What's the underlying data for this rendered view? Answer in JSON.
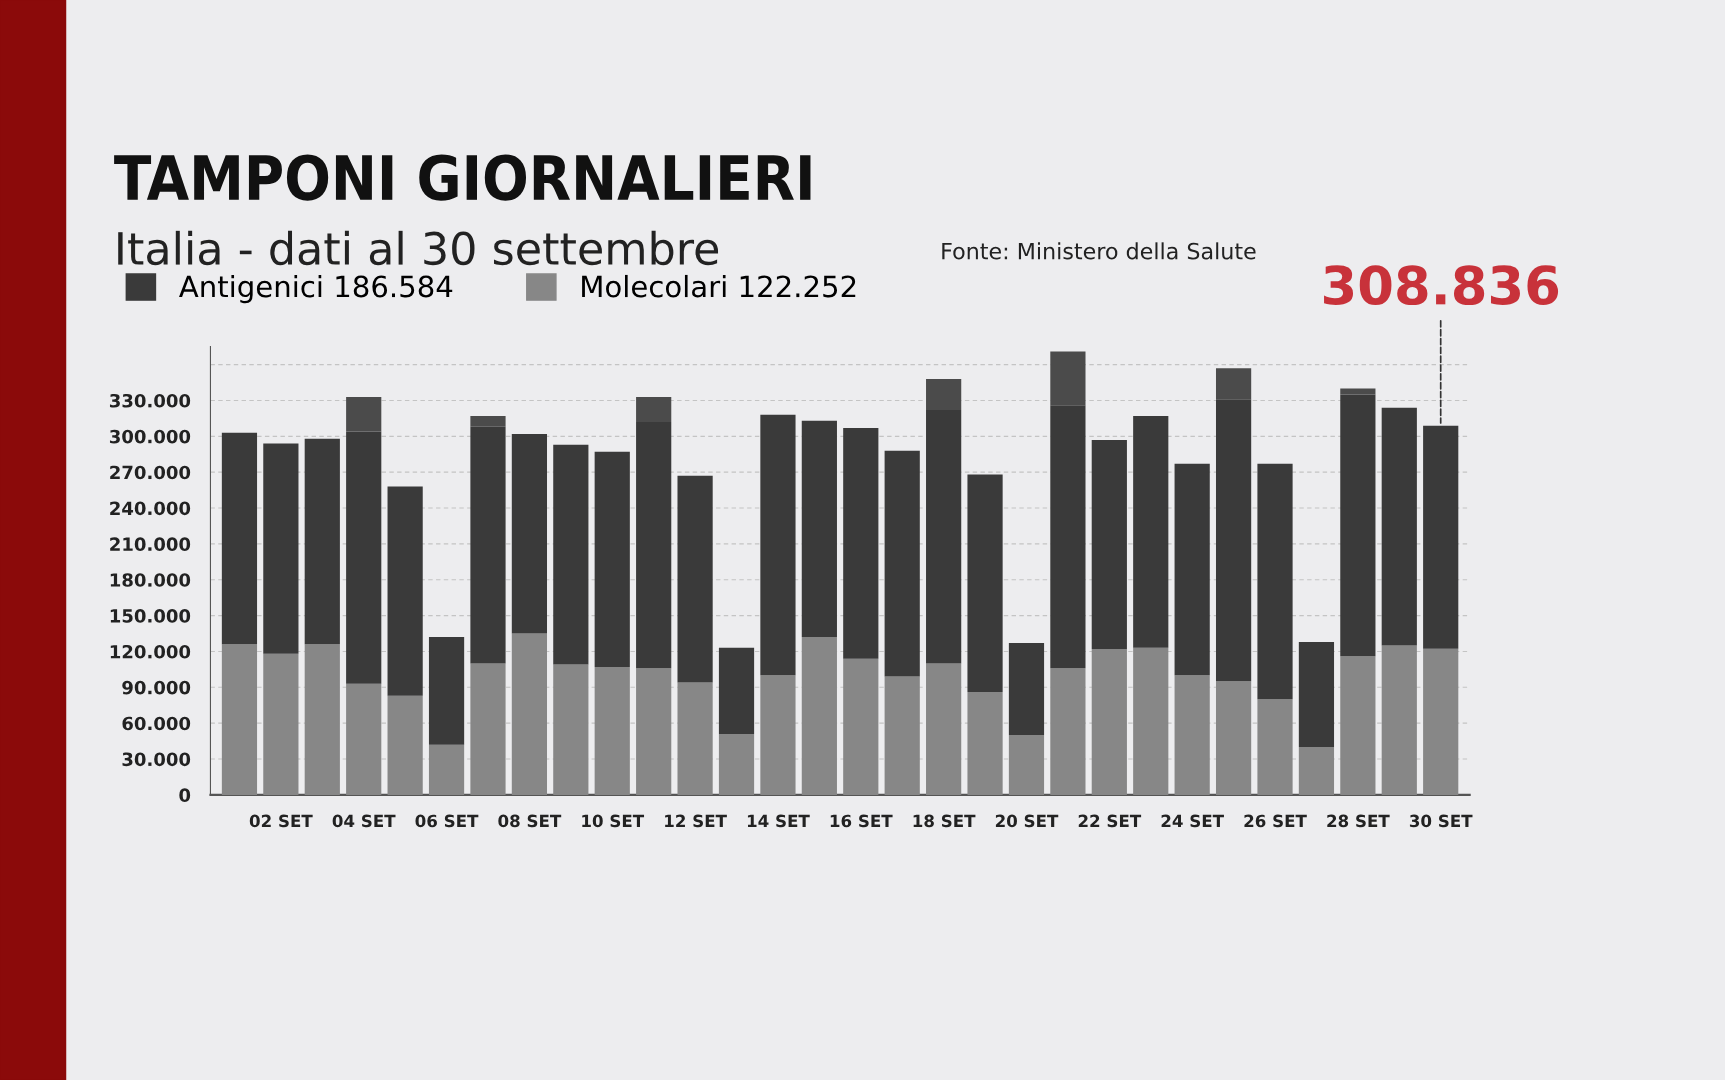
{
  "chart_data": {
    "type": "bar",
    "stacked": true,
    "title": "TAMPONI GIORNALIERI",
    "subtitle": "Italia - dati al 30 settembre",
    "categories": [
      null,
      "02 SET",
      null,
      "04 SET",
      null,
      "06 SET",
      null,
      "08 SET",
      null,
      "10 SET",
      null,
      "12 SET",
      null,
      "14 SET",
      null,
      "16 SET",
      null,
      "18 SET",
      null,
      "20 SET",
      null,
      "22 SET",
      null,
      "24 SET",
      null,
      "26 SET",
      null,
      "28 SET",
      null,
      "30 SET"
    ],
    "series": [
      {
        "name": "Molecolari 122.252",
        "color": "#878787",
        "values": [
          126000,
          118000,
          126000,
          93000,
          83000,
          42000,
          110000,
          135000,
          109000,
          107000,
          106000,
          94000,
          51000,
          100000,
          132000,
          114000,
          99000,
          110000,
          86000,
          50000,
          106000,
          122000,
          123000,
          100000,
          95000,
          80000,
          40000,
          116000,
          125000,
          122252
        ]
      },
      {
        "name": "Antigenici 186.584",
        "color": "#3a3a3a",
        "values": [
          177000,
          176000,
          172000,
          211000,
          175000,
          90000,
          198000,
          167000,
          184000,
          180000,
          206000,
          173000,
          72000,
          218000,
          181000,
          193000,
          189000,
          212000,
          182000,
          77000,
          220000,
          175000,
          194000,
          177000,
          236000,
          197000,
          88000,
          219000,
          199000,
          186584
        ]
      },
      {
        "color": "#4b4b4b",
        "values": [
          null,
          null,
          null,
          29000,
          null,
          null,
          9000,
          null,
          null,
          null,
          21000,
          null,
          null,
          null,
          null,
          null,
          null,
          26000,
          null,
          null,
          45000,
          null,
          null,
          null,
          26000,
          null,
          null,
          5000,
          null,
          null
        ]
      }
    ],
    "ylim": [
      0,
      375000
    ],
    "yticks": [
      {
        "value": 0,
        "label": "0"
      },
      {
        "value": 30000,
        "label": "30.000"
      },
      {
        "value": 60000,
        "label": "60.000"
      },
      {
        "value": 90000,
        "label": "90.000"
      },
      {
        "value": 120000,
        "label": "120.000"
      },
      {
        "value": 150000,
        "label": "150.000"
      },
      {
        "value": 180000,
        "label": "180.000"
      },
      {
        "value": 210000,
        "label": "210.000"
      },
      {
        "value": 240000,
        "label": "240.000"
      },
      {
        "value": 270000,
        "label": "270.000"
      },
      {
        "value": 300000,
        "label": "300.000"
      },
      {
        "value": 330000,
        "label": "330.000"
      },
      {
        "value": 360000,
        "label": null
      }
    ],
    "grid": "y",
    "legend": "top left",
    "annotations": [
      "Fonte: Ministero della Salute",
      {
        "text": "308.836",
        "x": "30 SET",
        "y": 308836
      }
    ]
  }
}
